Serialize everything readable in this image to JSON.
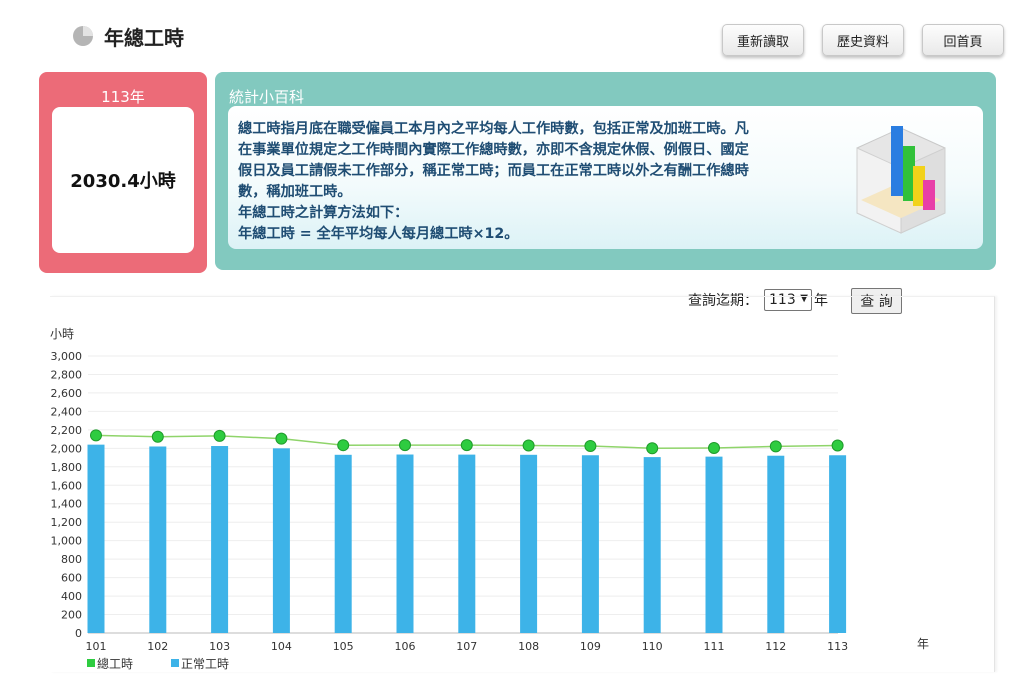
{
  "header": {
    "title": "年總工時",
    "icon": "pie-chart-icon"
  },
  "buttons": {
    "reload": "重新讀取",
    "history": "歷史資料",
    "home": "回首頁"
  },
  "year_card": {
    "year": "113年",
    "value": "2030.4小時"
  },
  "wiki": {
    "title": "統計小百科",
    "lines": [
      "總工時指月底在職受僱員工本月內之平均每人工作時數，包括正常及加班工時。凡",
      "在事業單位規定之工作時間內實際工作總時數，亦即不含規定休假、例假日、國定",
      "假日及員工請假未工作部分，稱正常工時；而員工在正常工時以外之有酬工作總時",
      "數，稱加班工時。",
      "年總工時之計算方法如下：",
      "年總工時 = 全年平均每人每月總工時×12。"
    ]
  },
  "query": {
    "label": "查詢迄期：",
    "selected": "113",
    "suffix": "年",
    "button": "查 詢"
  },
  "colors": {
    "bar": "#3db3e8",
    "line": "#2ecc40",
    "line_stroke": "#8fd46a",
    "year_card": "#ec6b78",
    "wiki_card": "#82c9bf"
  },
  "chart_data": {
    "type": "bar",
    "categories": [
      "101",
      "102",
      "103",
      "104",
      "105",
      "106",
      "107",
      "108",
      "109",
      "110",
      "111",
      "112",
      "113"
    ],
    "series": [
      {
        "name": "總工時",
        "type": "line",
        "values": [
          2140.8,
          2125.2,
          2134.8,
          2104.8,
          2034.0,
          2035.2,
          2035.2,
          2030.4,
          2025.6,
          2000.4,
          2003.8,
          2020.8,
          2030.4
        ]
      },
      {
        "name": "正常工時",
        "type": "bar",
        "values": [
          2040,
          2020,
          2025,
          2000,
          1930,
          1933,
          1932,
          1930,
          1925,
          1905,
          1910,
          1920,
          1925
        ]
      }
    ],
    "ylabel": "小時",
    "xlabel": "年",
    "ylim": [
      0,
      3000
    ],
    "yticks": [
      0,
      200,
      400,
      600,
      800,
      1000,
      1200,
      1400,
      1600,
      1800,
      2000,
      2200,
      2400,
      2600,
      2800,
      3000
    ],
    "ytick_labels": [
      "0",
      "200",
      "400",
      "600",
      "800",
      "1,000",
      "1,200",
      "1,400",
      "1,600",
      "1,800",
      "2,000",
      "2,200",
      "2,400",
      "2,600",
      "2,800",
      "3,000"
    ],
    "grid": true,
    "legend": "bottom-left"
  }
}
